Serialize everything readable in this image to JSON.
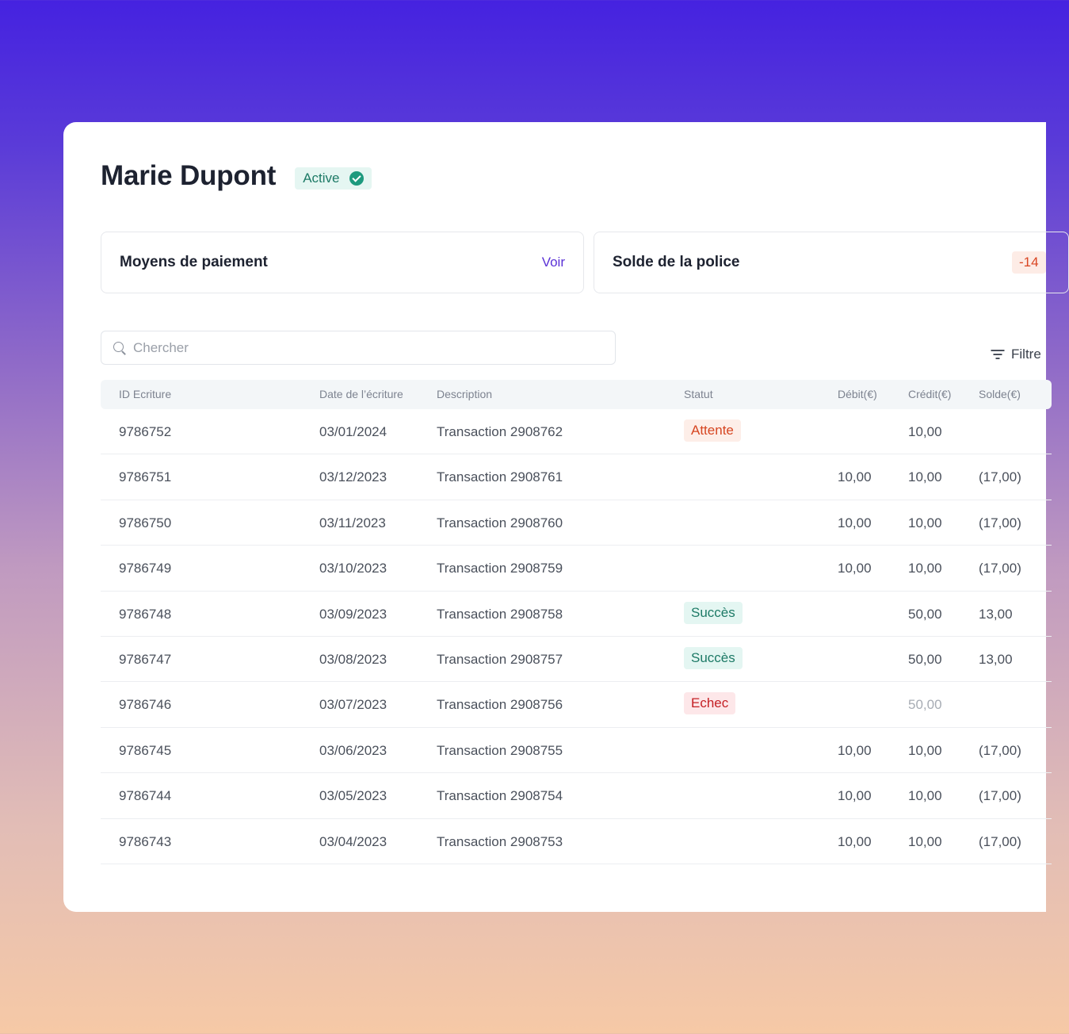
{
  "profile": {
    "name": "Marie Dupont",
    "status_label": "Active"
  },
  "panels": {
    "payment_title": "Moyens de paiement",
    "payment_link": "Voir",
    "balance_title": "Solde de la police",
    "balance_value": "-14"
  },
  "search": {
    "placeholder": "Chercher"
  },
  "filter": {
    "label": "Filtre"
  },
  "table": {
    "columns": [
      "ID Ecriture",
      "Date de l’écriture",
      "Description",
      "Statut",
      "Débit(€)",
      "Crédit(€)",
      "Solde(€)"
    ],
    "rows": [
      {
        "id": "9786752",
        "date": "03/01/2024",
        "desc": "Transaction 2908762",
        "status": "Attente",
        "debit": "",
        "credit": "10,00",
        "solde": ""
      },
      {
        "id": "9786751",
        "date": "03/12/2023",
        "desc": "Transaction 2908761",
        "status": "",
        "debit": "10,00",
        "credit": "10,00",
        "solde": "(17,00)"
      },
      {
        "id": "9786750",
        "date": "03/11/2023",
        "desc": "Transaction 2908760",
        "status": "",
        "debit": "10,00",
        "credit": "10,00",
        "solde": "(17,00)"
      },
      {
        "id": "9786749",
        "date": "03/10/2023",
        "desc": "Transaction 2908759",
        "status": "",
        "debit": "10,00",
        "credit": "10,00",
        "solde": "(17,00)"
      },
      {
        "id": "9786748",
        "date": "03/09/2023",
        "desc": "Transaction 2908758",
        "status": "Succès",
        "debit": "",
        "credit": "50,00",
        "solde": "13,00"
      },
      {
        "id": "9786747",
        "date": "03/08/2023",
        "desc": "Transaction 2908757",
        "status": "Succès",
        "debit": "",
        "credit": "50,00",
        "solde": "13,00"
      },
      {
        "id": "9786746",
        "date": "03/07/2023",
        "desc": "Transaction 2908756",
        "status": "Echec",
        "debit": "",
        "credit": "50,00",
        "solde": ""
      },
      {
        "id": "9786745",
        "date": "03/06/2023",
        "desc": "Transaction 2908755",
        "status": "",
        "debit": "10,00",
        "credit": "10,00",
        "solde": "(17,00)"
      },
      {
        "id": "9786744",
        "date": "03/05/2023",
        "desc": "Transaction 2908754",
        "status": "",
        "debit": "10,00",
        "credit": "10,00",
        "solde": "(17,00)"
      },
      {
        "id": "9786743",
        "date": "03/04/2023",
        "desc": "Transaction 2908753",
        "status": "",
        "debit": "10,00",
        "credit": "10,00",
        "solde": "(17,00)"
      }
    ]
  },
  "colors": {
    "accent": "#5b32d6",
    "success": "#1d7a66",
    "pending": "#d64520",
    "failure": "#c41f24"
  }
}
